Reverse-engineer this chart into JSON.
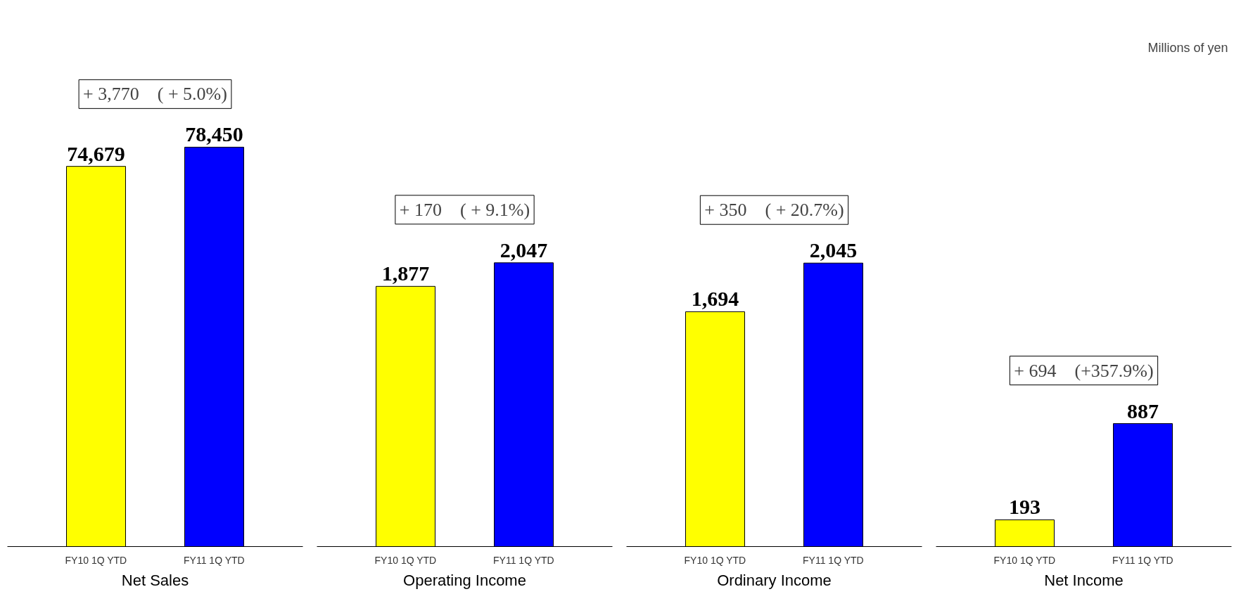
{
  "chart_data": [
    {
      "type": "bar",
      "xlabel": "Net Sales",
      "categories": [
        "FY10 1Q YTD",
        "FY11 1Q YTD"
      ],
      "values": [
        74679,
        78450
      ],
      "value_labels": [
        "74,679",
        "78,450"
      ],
      "colors": [
        "#ffff00",
        "#0000ff"
      ],
      "grid": false,
      "tick_labels": "x",
      "annotations": [
        "+ 3,770　( + 5.0%)"
      ]
    },
    {
      "type": "bar",
      "xlabel": "Operating Income",
      "categories": [
        "FY10 1Q YTD",
        "FY11 1Q YTD"
      ],
      "values": [
        1877,
        2047
      ],
      "value_labels": [
        "1,877",
        "2,047"
      ],
      "colors": [
        "#ffff00",
        "#0000ff"
      ],
      "grid": false,
      "tick_labels": "x",
      "annotations": [
        "+ 170　( + 9.1%)"
      ]
    },
    {
      "type": "bar",
      "xlabel": "Ordinary Income",
      "categories": [
        "FY10 1Q YTD",
        "FY11 1Q YTD"
      ],
      "values": [
        1694,
        2045
      ],
      "value_labels": [
        "1,694",
        "2,045"
      ],
      "colors": [
        "#ffff00",
        "#0000ff"
      ],
      "grid": false,
      "tick_labels": "x",
      "annotations": [
        "+ 350　( + 20.7%)"
      ]
    },
    {
      "type": "bar",
      "xlabel": "Net Income",
      "categories": [
        "FY10 1Q YTD",
        "FY11 1Q YTD"
      ],
      "values": [
        193,
        887
      ],
      "value_labels": [
        "193",
        "887"
      ],
      "colors": [
        "#ffff00",
        "#0000ff"
      ],
      "grid": false,
      "tick_labels": "x",
      "annotations": [
        "+ 694　(+357.9%)",
        "Millions of yen"
      ]
    }
  ]
}
